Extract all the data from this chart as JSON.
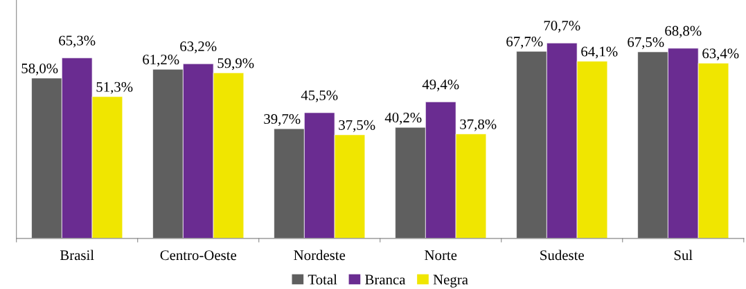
{
  "chart_data": {
    "type": "bar",
    "categories": [
      "Brasil",
      "Centro-Oeste",
      "Nordeste",
      "Norte",
      "Sudeste",
      "Sul"
    ],
    "series": [
      {
        "name": "Total",
        "color": "#5f5f5f",
        "values": [
          58.0,
          61.2,
          39.7,
          40.2,
          67.7,
          67.5
        ],
        "value_labels": [
          "58,0%",
          "61,2%",
          "39,7%",
          "40,2%",
          "67,7%",
          "67,5%"
        ]
      },
      {
        "name": "Branca",
        "color": "#6a2c91",
        "values": [
          65.3,
          63.2,
          45.5,
          49.4,
          70.7,
          68.8
        ],
        "value_labels": [
          "65,3%",
          "63,2%",
          "45,5%",
          "49,4%",
          "70,7%",
          "68,8%"
        ]
      },
      {
        "name": "Negra",
        "color": "#f0e600",
        "values": [
          51.3,
          59.9,
          37.5,
          37.8,
          64.1,
          63.4
        ],
        "value_labels": [
          "51,3%",
          "59,9%",
          "37,5%",
          "37,8%",
          "64,1%",
          "63,4%"
        ]
      }
    ],
    "grid": false,
    "legend": "bottom"
  }
}
